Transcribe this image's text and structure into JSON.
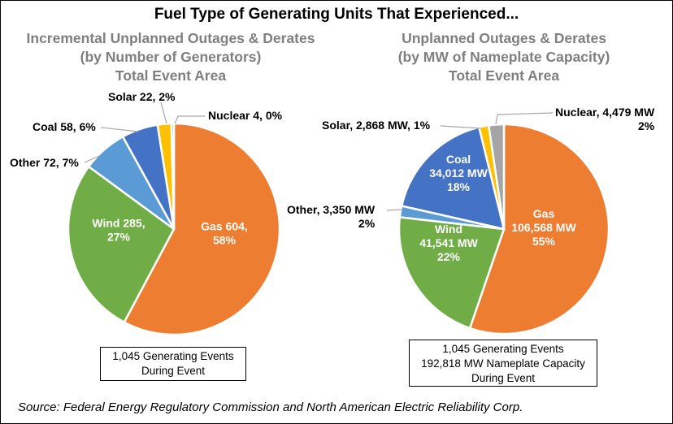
{
  "title": "Fuel Type of Generating Units That Experienced...",
  "left_subtitle": [
    "Incremental Unplanned Outages & Derates",
    "(by Number of Generators)",
    "Total Event Area"
  ],
  "right_subtitle": [
    "Unplanned Outages & Derates",
    "(by MW of Nameplate Capacity)",
    "Total Event Area"
  ],
  "left_box": [
    "1,045 Generating Events",
    "During Event"
  ],
  "right_box": [
    "1,045 Generating Events",
    "192,818 MW Nameplate Capacity",
    "During Event"
  ],
  "source": "Source: Federal Energy Regulatory Commission and North American Electric Reliability Corp.",
  "colors": {
    "Gas": "#ed7d31",
    "Wind": "#70ad47",
    "Other": "#5b9bd5",
    "Coal": "#4472c4",
    "Solar": "#ffc000",
    "Nuclear": "#a5a5a5"
  },
  "chart_data": [
    {
      "type": "pie",
      "title": "Incremental Unplanned Outages & Derates (by Number of Generators) Total Event Area",
      "categories": [
        "Gas",
        "Wind",
        "Other",
        "Coal",
        "Solar",
        "Nuclear"
      ],
      "values": [
        604,
        285,
        72,
        58,
        22,
        4
      ],
      "percent": [
        58,
        27,
        7,
        6,
        2,
        0
      ],
      "labels": [
        [
          "Gas 604,",
          "58%"
        ],
        [
          "Wind 285,",
          "27%"
        ],
        [
          "Other 72, 7%"
        ],
        [
          "Coal 58, 6%"
        ],
        [
          "Solar 22, 2%"
        ],
        [
          "Nuclear 4, 0%"
        ]
      ]
    },
    {
      "type": "pie",
      "title": "Unplanned Outages & Derates (by MW of Nameplate Capacity) Total Event Area",
      "categories": [
        "Gas",
        "Wind",
        "Other",
        "Coal",
        "Solar",
        "Nuclear"
      ],
      "values": [
        106568,
        41541,
        3350,
        34012,
        2868,
        4479
      ],
      "unit": "MW",
      "percent": [
        55,
        22,
        2,
        18,
        1,
        2
      ],
      "labels": [
        [
          "Gas",
          "106,568 MW",
          "55%"
        ],
        [
          "Wind",
          "41,541 MW",
          "22%"
        ],
        [
          "Other, 3,350 MW",
          "2%"
        ],
        [
          "Coal",
          "34,012 MW",
          "18%"
        ],
        [
          "Solar, 2,868 MW, 1%"
        ],
        [
          "Nuclear, 4,479 MW",
          "2%"
        ]
      ]
    }
  ]
}
